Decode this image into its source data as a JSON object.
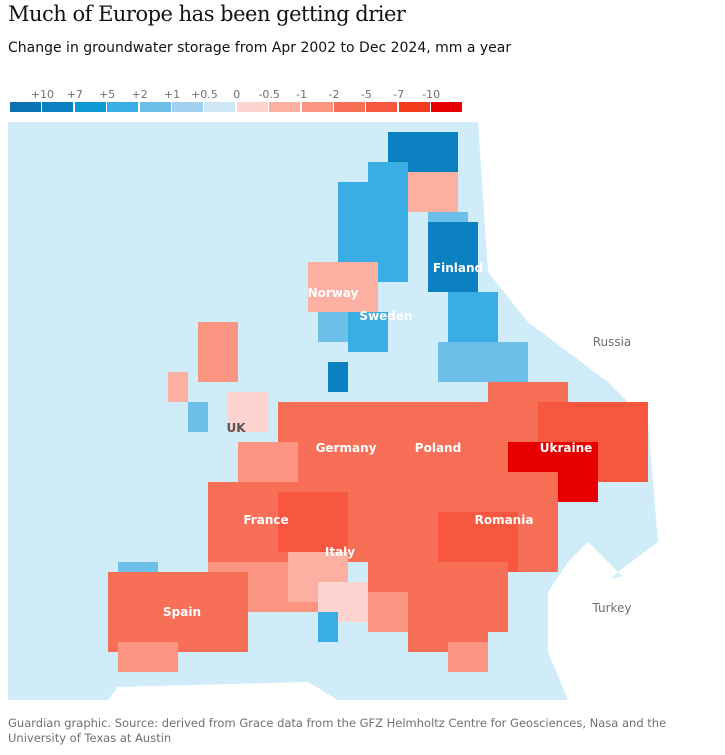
{
  "title": "Much of Europe has been getting drier",
  "subtitle": "Change in groundwater storage from Apr 2002 to Dec 2024, mm a year",
  "legend": {
    "labels": [
      "+10",
      "+7",
      "+5",
      "+2",
      "+1",
      "+0.5",
      "0",
      "-0.5",
      "-1",
      "-2",
      "-5",
      "-7",
      "-10"
    ],
    "colors": [
      "#0a72b0",
      "#0b80c0",
      "#0e98d4",
      "#3aaee4",
      "#6cbfe9",
      "#a3d2f0",
      "#cfe6f4",
      "#fdd4cf",
      "#fcb0a2",
      "#fb9480",
      "#f86f57",
      "#f6573e",
      "#f23a1d",
      "#e80000"
    ]
  },
  "map": {
    "sea_color": "#d1ecf9",
    "land_color": "#ffffff",
    "labels": [
      {
        "name": "Norway",
        "bold": true
      },
      {
        "name": "Sweden",
        "bold": true
      },
      {
        "name": "Finland",
        "bold": true
      },
      {
        "name": "Russia",
        "bold": false
      },
      {
        "name": "UK",
        "bold": true
      },
      {
        "name": "Germany",
        "bold": true
      },
      {
        "name": "Poland",
        "bold": true
      },
      {
        "name": "Ukraine",
        "bold": true
      },
      {
        "name": "France",
        "bold": true
      },
      {
        "name": "Romania",
        "bold": true
      },
      {
        "name": "Italy",
        "bold": true
      },
      {
        "name": "Spain",
        "bold": true
      },
      {
        "name": "Turkey",
        "bold": false
      }
    ]
  },
  "source": "Guardian graphic. Source: derived from Grace data from the GFZ Helmholtz Centre for Geosciences, Nasa and the University of Texas at Austin"
}
